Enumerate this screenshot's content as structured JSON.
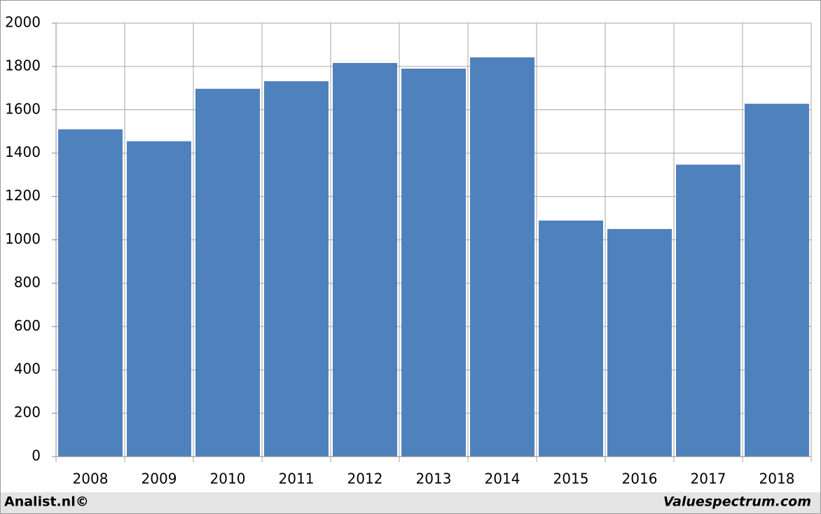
{
  "chart_data": {
    "type": "bar",
    "categories": [
      "2008",
      "2009",
      "2010",
      "2011",
      "2012",
      "2013",
      "2014",
      "2015",
      "2016",
      "2017",
      "2018"
    ],
    "values": [
      1510,
      1455,
      1697,
      1732,
      1816,
      1790,
      1842,
      1089,
      1050,
      1347,
      1628
    ],
    "color": "#4f81bd",
    "ylim": [
      0,
      2000
    ],
    "yticks": [
      0,
      200,
      400,
      600,
      800,
      1000,
      1200,
      1400,
      1600,
      1800,
      2000
    ],
    "grid": true,
    "credits": {
      "left": "Analist.nl©",
      "right": "Valuespectrum.com"
    }
  }
}
